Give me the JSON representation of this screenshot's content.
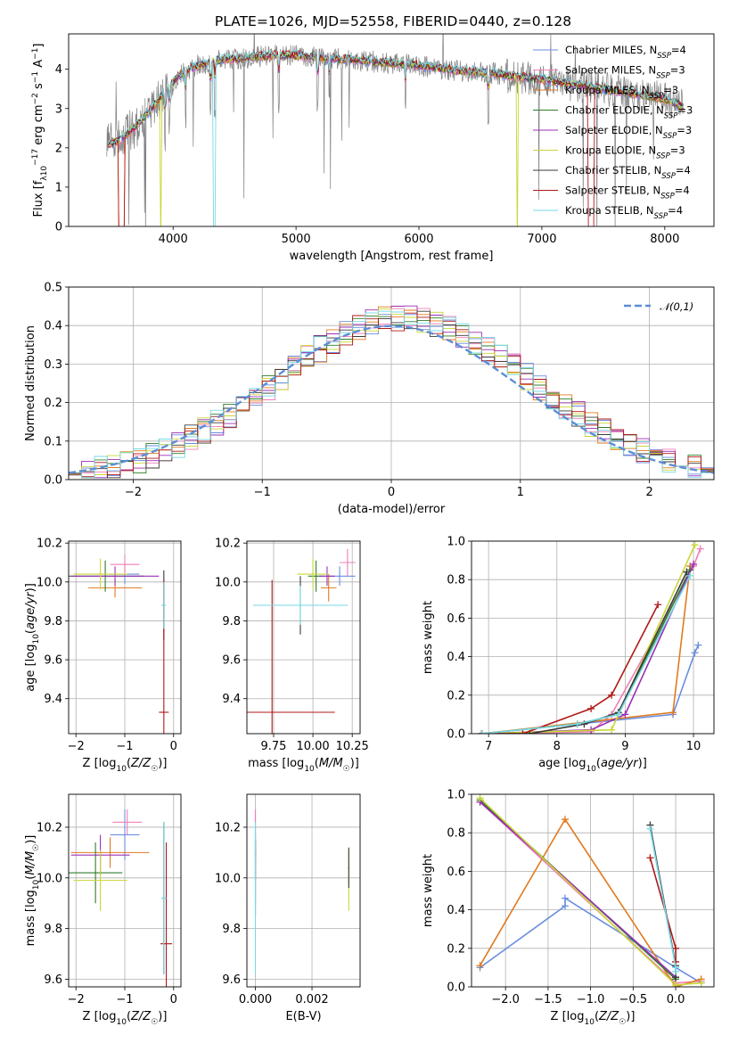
{
  "title": "PLATE=1026, MJD=52558, FIBERID=0440, z=0.128",
  "colors": {
    "Chabrier MILES": "#6a8ee0",
    "Salpeter MILES": "#f07fb7",
    "Kroupa MILES": "#e07a1f",
    "Chabrier ELODIE": "#2f7d2a",
    "Salpeter ELODIE": "#9b2fb5",
    "Kroupa ELODIE": "#c9d636",
    "Chabrier STELIB": "#3a3a3a",
    "Salpeter STELIB": "#b01818",
    "Kroupa STELIB": "#77d9e6",
    "data": "#808080"
  },
  "chart_data": [
    {
      "id": "spectrum",
      "type": "line",
      "xlabel": "wavelength [Angstrom, rest frame]",
      "ylabel": "Flux [f$_\\lambda$10$^{-17}$ erg cm$^{-2}$ s$^{-1}$ A$^{-1}$]",
      "ylabel_parts": [
        "Flux [f",
        "λ",
        "10",
        "−17",
        " erg cm",
        "−2",
        " s",
        "−1",
        " A",
        "−1",
        "]"
      ],
      "xlim": [
        3150,
        8400
      ],
      "ylim": [
        0,
        4.9
      ],
      "xticks": [
        4000,
        5000,
        6000,
        7000,
        8000
      ],
      "yticks": [
        0,
        1,
        2,
        3,
        4
      ],
      "legend": [
        {
          "model": "Chabrier MILES",
          "label": "Chabrier MILES, N",
          "sub": "SSP",
          "suffix": "=4"
        },
        {
          "model": "Salpeter MILES",
          "label": "Salpeter MILES, N",
          "sub": "SSP",
          "suffix": "=3"
        },
        {
          "model": "Kroupa MILES",
          "label": "Kroupa MILES, N",
          "sub": "SSP",
          "suffix": "=3"
        },
        {
          "model": "Chabrier ELODIE",
          "label": "Chabrier ELODIE, N",
          "sub": "SSP",
          "suffix": "=3"
        },
        {
          "model": "Salpeter ELODIE",
          "label": "Salpeter ELODIE, N",
          "sub": "SSP",
          "suffix": "=3"
        },
        {
          "model": "Kroupa ELODIE",
          "label": "Kroupa ELODIE, N",
          "sub": "SSP",
          "suffix": "=3"
        },
        {
          "model": "Chabrier STELIB",
          "label": "Chabrier STELIB, N",
          "sub": "SSP",
          "suffix": "=4"
        },
        {
          "model": "Salpeter STELIB",
          "label": "Salpeter STELIB, N",
          "sub": "SSP",
          "suffix": "=4"
        },
        {
          "model": "Kroupa STELIB",
          "label": "Kroupa STELIB, N",
          "sub": "SSP",
          "suffix": "=4"
        }
      ],
      "continuum": {
        "x": [
          3450,
          3560,
          3700,
          3850,
          3950,
          4050,
          4200,
          4400,
          4600,
          4800,
          5000,
          5200,
          5400,
          5600,
          5800,
          6000,
          6200,
          6400,
          6600,
          6800,
          7000,
          7200,
          7400,
          7600,
          7800,
          8000,
          8150
        ],
        "y": [
          2.05,
          2.2,
          2.55,
          3.1,
          3.5,
          3.85,
          4.1,
          4.25,
          4.3,
          4.35,
          4.35,
          4.3,
          4.25,
          4.2,
          4.15,
          4.1,
          4.0,
          3.95,
          3.9,
          3.8,
          3.75,
          3.65,
          3.55,
          3.45,
          3.35,
          3.25,
          3.05
        ]
      },
      "absorption_lines": [
        3934,
        3969,
        4102,
        4305,
        4340,
        4861,
        5175,
        5270,
        5890,
        6563
      ],
      "model_dips": [
        {
          "model": "Salpeter STELIB",
          "x": [
            3560,
            3600
          ]
        },
        {
          "model": "Kroupa MILES",
          "x": [
            3560,
            3600
          ]
        },
        {
          "model": "Kroupa ELODIE",
          "x": [
            3895,
            3905
          ]
        },
        {
          "model": "Kroupa STELIB",
          "x": [
            4330,
            4345
          ]
        },
        {
          "model": "Kroupa ELODIE",
          "x": [
            6795,
            6805
          ]
        },
        {
          "model": "Salpeter STELIB",
          "x": [
            7380,
            7420
          ]
        }
      ]
    },
    {
      "id": "residuals",
      "type": "line",
      "xlabel": "(data-model)/error",
      "ylabel": "Normed distribution",
      "xlim": [
        -2.5,
        2.5
      ],
      "ylim": [
        0,
        0.5
      ],
      "xticks": [
        -2,
        -1,
        0,
        1,
        2
      ],
      "xtick_labels": [
        "−2",
        "−1",
        "0",
        "1",
        "2"
      ],
      "yticks": [
        0,
        0.1,
        0.2,
        0.3,
        0.4,
        0.5
      ],
      "ytick_labels": [
        "0.0",
        "0.1",
        "0.2",
        "0.3",
        "0.4",
        "0.5"
      ],
      "legend": [
        {
          "label": "𝒩(0,1)"
        }
      ],
      "gaussian": {
        "mean": 0,
        "sigma": 1,
        "style": "dashed"
      },
      "histogram": {
        "bin_width": 0.1,
        "range": [
          -2.5,
          2.5
        ]
      }
    },
    {
      "id": "z_age",
      "type": "scatter",
      "xlabel": "Z [log10(Z/Z☉)]",
      "xlabel_parts": [
        "Z [log",
        "10",
        "(",
        "Z/Z",
        "☉",
        ")]"
      ],
      "ylabel_parts": [
        "age  [log",
        "10",
        "(",
        "age/yr",
        ")]"
      ],
      "xlim": [
        -2.15,
        0.15
      ],
      "ylim": [
        9.22,
        10.21
      ],
      "xticks": [
        -2,
        -1,
        0
      ],
      "xtick_labels": [
        "−2",
        "−1",
        "0"
      ],
      "yticks": [
        9.4,
        9.6,
        9.8,
        10.0,
        10.2
      ],
      "ytick_labels": [
        "9.4",
        "9.6",
        "9.8",
        "10.0",
        "10.2"
      ],
      "points": [
        {
          "model": "Chabrier MILES",
          "x": -1.0,
          "xerr": 0.3,
          "y": 10.04,
          "yerr": 0.05
        },
        {
          "model": "Salpeter MILES",
          "x": -1.0,
          "xerr": 0.3,
          "y": 10.09,
          "yerr": 0.05
        },
        {
          "model": "Kroupa MILES",
          "x": -1.2,
          "xerr": 0.55,
          "y": 9.97,
          "yerr": 0.05
        },
        {
          "model": "Chabrier ELODIE",
          "x": -1.4,
          "xerr": 0.8,
          "y": 10.03,
          "yerr": 0.08
        },
        {
          "model": "Salpeter ELODIE",
          "x": -1.2,
          "xerr": 0.9,
          "y": 10.03,
          "yerr": 0.05
        },
        {
          "model": "Kroupa ELODIE",
          "x": -1.5,
          "xerr": 0.55,
          "y": 10.04,
          "yerr": 0.08
        },
        {
          "model": "Chabrier STELIB",
          "x": -0.2,
          "xerr": 0.04,
          "y": 9.88,
          "yerr": 0.18
        },
        {
          "model": "Salpeter STELIB",
          "x": -0.2,
          "xerr": 0.1,
          "y": 9.33,
          "yerr": 0.68
        },
        {
          "model": "Kroupa STELIB",
          "x": -0.2,
          "xerr": 0.04,
          "y": 9.88,
          "yerr": 0.12
        }
      ]
    },
    {
      "id": "mass_age",
      "type": "scatter",
      "xlabel_parts": [
        "mass [log",
        "10",
        "(",
        "M/M",
        "☉",
        ")]"
      ],
      "xlim": [
        9.58,
        10.3
      ],
      "ylim": [
        9.22,
        10.21
      ],
      "xticks": [
        9.75,
        10.0,
        10.25
      ],
      "xtick_labels": [
        "9.75",
        "10.00",
        "10.25"
      ],
      "yticks": [
        9.4,
        9.6,
        9.8,
        10.0,
        10.2
      ],
      "ytick_labels": [
        "9.4",
        "9.6",
        "9.8",
        "10.0",
        "10.2"
      ],
      "points": [
        {
          "model": "Chabrier MILES",
          "x": 10.17,
          "xerr": 0.1,
          "y": 10.03,
          "yerr": 0.05
        },
        {
          "model": "Salpeter MILES",
          "x": 10.22,
          "xerr": 0.05,
          "y": 10.1,
          "yerr": 0.07
        },
        {
          "model": "Kroupa MILES",
          "x": 10.1,
          "xerr": 0.05,
          "y": 9.97,
          "yerr": 0.07
        },
        {
          "model": "Chabrier ELODIE",
          "x": 10.02,
          "xerr": 0.05,
          "y": 10.03,
          "yerr": 0.08
        },
        {
          "model": "Salpeter ELODIE",
          "x": 10.09,
          "xerr": 0.05,
          "y": 10.03,
          "yerr": 0.05
        },
        {
          "model": "Kroupa ELODIE",
          "x": 10.0,
          "xerr": 0.1,
          "y": 10.04,
          "yerr": 0.08
        },
        {
          "model": "Chabrier STELIB",
          "x": 9.92,
          "xerr": 0.3,
          "y": 9.88,
          "yerr": 0.15
        },
        {
          "model": "Salpeter STELIB",
          "x": 9.74,
          "xerr": 0.4,
          "y": 9.33,
          "yerr": 0.68
        },
        {
          "model": "Kroupa STELIB",
          "x": 9.92,
          "xerr": 0.3,
          "y": 9.88,
          "yerr": 0.1
        }
      ]
    },
    {
      "id": "age_weight",
      "type": "line",
      "xlabel_parts": [
        "age  [log",
        "10",
        "(",
        "age/yr",
        ")]"
      ],
      "ylabel": "mass weight",
      "xlim": [
        6.75,
        10.3
      ],
      "ylim": [
        0,
        1
      ],
      "xticks": [
        7,
        8,
        9,
        10
      ],
      "yticks": [
        0,
        0.2,
        0.4,
        0.6,
        0.8,
        1.0
      ],
      "ytick_labels": [
        "0.0",
        "0.2",
        "0.4",
        "0.6",
        "0.8",
        "1.0"
      ],
      "series": [
        {
          "model": "Chabrier MILES",
          "x": [
            6.9,
            9.7,
            10.02,
            10.07
          ],
          "y": [
            0.0,
            0.1,
            0.42,
            0.46
          ]
        },
        {
          "model": "Salpeter MILES",
          "x": [
            6.9,
            8.5,
            8.8,
            10.0,
            10.1
          ],
          "y": [
            0.0,
            0.01,
            0.1,
            0.87,
            0.96
          ]
        },
        {
          "model": "Kroupa MILES",
          "x": [
            6.9,
            9.7,
            9.95
          ],
          "y": [
            0.0,
            0.11,
            0.87
          ]
        },
        {
          "model": "Chabrier ELODIE",
          "x": [
            6.9,
            8.3,
            8.9,
            9.95
          ],
          "y": [
            0.0,
            0.05,
            0.1,
            0.85
          ]
        },
        {
          "model": "Salpeter ELODIE",
          "x": [
            6.9,
            8.5,
            9.0,
            10.0
          ],
          "y": [
            0.0,
            0.02,
            0.1,
            0.88
          ]
        },
        {
          "model": "Kroupa ELODIE",
          "x": [
            6.9,
            8.8,
            10.02
          ],
          "y": [
            0.0,
            0.02,
            0.98
          ]
        },
        {
          "model": "Chabrier STELIB",
          "x": [
            6.9,
            7.6,
            8.4,
            8.9,
            9.9
          ],
          "y": [
            0.0,
            0.0,
            0.05,
            0.11,
            0.84
          ]
        },
        {
          "model": "Salpeter STELIB",
          "x": [
            6.9,
            7.5,
            8.5,
            8.8,
            9.48
          ],
          "y": [
            0.0,
            0.0,
            0.13,
            0.2,
            0.67
          ]
        },
        {
          "model": "Kroupa STELIB",
          "x": [
            6.9,
            8.3,
            8.9,
            9.95
          ],
          "y": [
            0.0,
            0.05,
            0.1,
            0.82
          ]
        }
      ]
    },
    {
      "id": "z_mass",
      "type": "scatter",
      "xlabel_parts": [
        "Z [log",
        "10",
        "(",
        "Z/Z",
        "☉",
        ")]"
      ],
      "ylabel_parts": [
        "mass [log",
        "10",
        "(",
        "M/M",
        "☉",
        ")]"
      ],
      "xlim": [
        -2.15,
        0.15
      ],
      "ylim": [
        9.57,
        10.33
      ],
      "xticks": [
        -2,
        -1,
        0
      ],
      "xtick_labels": [
        "−2",
        "−1",
        "0"
      ],
      "yticks": [
        9.6,
        9.8,
        10.0,
        10.2
      ],
      "ytick_labels": [
        "9.6",
        "9.8",
        "10.0",
        "10.2"
      ],
      "points": [
        {
          "model": "Chabrier MILES",
          "x": -1.0,
          "xerr": 0.3,
          "y": 10.17,
          "yerr": 0.1
        },
        {
          "model": "Salpeter MILES",
          "x": -0.95,
          "xerr": 0.3,
          "y": 10.22,
          "yerr": 0.05
        },
        {
          "model": "Kroupa MILES",
          "x": -1.3,
          "xerr": 0.8,
          "y": 10.1,
          "yerr": 0.06
        },
        {
          "model": "Chabrier ELODIE",
          "x": -1.6,
          "xerr": 0.55,
          "y": 10.02,
          "yerr": 0.12
        },
        {
          "model": "Salpeter ELODIE",
          "x": -1.5,
          "xerr": 0.6,
          "y": 10.09,
          "yerr": 0.08
        },
        {
          "model": "Kroupa ELODIE",
          "x": -1.5,
          "xerr": 0.55,
          "y": 9.99,
          "yerr": 0.12
        },
        {
          "model": "Chabrier STELIB",
          "x": -0.2,
          "xerr": 0.05,
          "y": 9.92,
          "yerr": 0.3
        },
        {
          "model": "Salpeter STELIB",
          "x": -0.15,
          "xerr": 0.12,
          "y": 9.74,
          "yerr": 0.4
        },
        {
          "model": "Kroupa STELIB",
          "x": -0.2,
          "xerr": 0.05,
          "y": 9.92,
          "yerr": 0.3
        }
      ]
    },
    {
      "id": "ebv_mass",
      "type": "scatter",
      "xlabel": "E(B-V)",
      "xlim": [
        -0.0003,
        0.0037
      ],
      "ylim": [
        9.57,
        10.33
      ],
      "xticks": [
        0.0,
        0.002
      ],
      "xtick_labels": [
        "0.000",
        "0.002"
      ],
      "yticks": [
        9.6,
        9.8,
        10.0,
        10.2
      ],
      "ytick_labels": [
        "9.6",
        "9.8",
        "10.0",
        "10.2"
      ],
      "points": [
        {
          "model": "Chabrier MILES",
          "x": 0.0,
          "xerr": 2e-05,
          "y": 10.17,
          "yerr": 0.1
        },
        {
          "model": "Salpeter MILES",
          "x": 0.0,
          "xerr": 2e-05,
          "y": 10.22,
          "yerr": 0.05
        },
        {
          "model": "Kroupa MILES",
          "x": 0.0,
          "xerr": 2e-05,
          "y": 10.1,
          "yerr": 0.06
        },
        {
          "model": "Chabrier ELODIE",
          "x": 0.0,
          "xerr": 2e-05,
          "y": 10.02,
          "yerr": 0.12
        },
        {
          "model": "Salpeter ELODIE",
          "x": 0.0,
          "xerr": 2e-05,
          "y": 10.09,
          "yerr": 0.08
        },
        {
          "model": "Kroupa ELODIE",
          "x": 0.0033,
          "xerr": 2e-05,
          "y": 9.99,
          "yerr": 0.12
        },
        {
          "model": "Chabrier STELIB",
          "x": 0.0033,
          "xerr": 2e-05,
          "y": 10.04,
          "yerr": 0.08
        },
        {
          "model": "Salpeter STELIB",
          "x": 0.0,
          "xerr": 2e-05,
          "y": 10.0,
          "yerr": 0.15
        },
        {
          "model": "Kroupa STELIB",
          "x": 0.0,
          "xerr": 2e-05,
          "y": 9.92,
          "yerr": 0.3
        }
      ]
    },
    {
      "id": "z_weight",
      "type": "line",
      "xlabel_parts": [
        "Z [log",
        "10",
        "(",
        "Z/Z",
        "☉",
        ")]"
      ],
      "ylabel": "mass weight",
      "xlim": [
        -2.4,
        0.45
      ],
      "ylim": [
        0,
        1
      ],
      "xticks": [
        -2.0,
        -1.5,
        -1.0,
        -0.5,
        0.0
      ],
      "xtick_labels": [
        "−2.0",
        "−1.5",
        "−1.0",
        "−0.5",
        "0.0"
      ],
      "yticks": [
        0,
        0.2,
        0.4,
        0.6,
        0.8,
        1.0
      ],
      "ytick_labels": [
        "0.0",
        "0.2",
        "0.4",
        "0.6",
        "0.8",
        "1.0"
      ],
      "series": [
        {
          "model": "Chabrier MILES",
          "x": [
            -2.3,
            -1.3,
            -1.3,
            0.0,
            0.3
          ],
          "y": [
            0.1,
            0.42,
            0.46,
            0.1,
            0.02
          ]
        },
        {
          "model": "Salpeter MILES",
          "x": [
            -2.3,
            0.0,
            0.3
          ],
          "y": [
            0.96,
            0.02,
            0.03
          ]
        },
        {
          "model": "Kroupa MILES",
          "x": [
            -2.3,
            -1.3,
            0.0,
            0.3
          ],
          "y": [
            0.11,
            0.87,
            0.0,
            0.04
          ]
        },
        {
          "model": "Chabrier ELODIE",
          "x": [
            -2.3,
            0.0
          ],
          "y": [
            0.97,
            0.04
          ]
        },
        {
          "model": "Salpeter ELODIE",
          "x": [
            -2.3,
            0.0
          ],
          "y": [
            0.96,
            0.05
          ]
        },
        {
          "model": "Kroupa ELODIE",
          "x": [
            -2.3,
            0.0,
            0.3
          ],
          "y": [
            0.98,
            0.01,
            0.02
          ]
        },
        {
          "model": "Chabrier STELIB",
          "x": [
            -0.3,
            0.0,
            0.0
          ],
          "y": [
            0.84,
            0.11,
            0.05
          ]
        },
        {
          "model": "Salpeter STELIB",
          "x": [
            -0.3,
            0.0,
            0.0
          ],
          "y": [
            0.67,
            0.2,
            0.13
          ]
        },
        {
          "model": "Kroupa STELIB",
          "x": [
            -0.3,
            0.0,
            0.0
          ],
          "y": [
            0.82,
            0.1,
            0.08
          ]
        }
      ]
    }
  ]
}
